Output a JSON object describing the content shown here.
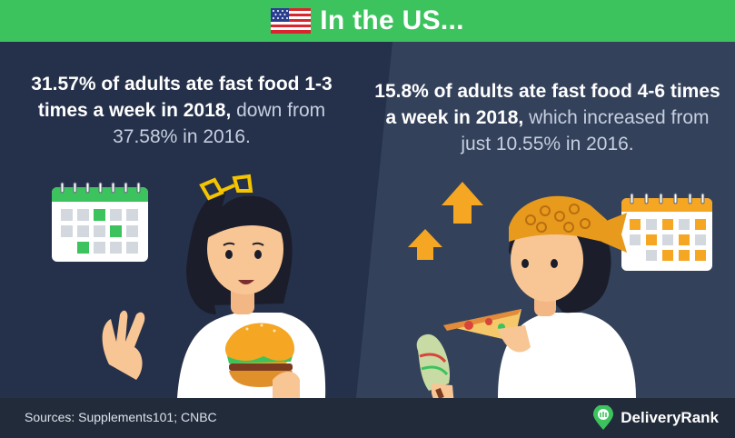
{
  "header": {
    "title": "In the US...",
    "flag_icon": "us-flag-icon"
  },
  "left_panel": {
    "stat_bold": "31.57% of adults ate fast food 1-3 times a week in 2018,",
    "stat_rest": " down from 37.58% in 2016.",
    "calendar_icon": "calendar-icon",
    "illustration": "woman-eating-burger-illustration"
  },
  "right_panel": {
    "stat_bold": "15.8% of adults ate fast food 4-6 times a week in 2018,",
    "stat_rest": " which increased from just 10.55% in 2016.",
    "calendar_icon": "calendar-icon",
    "arrow_icon": "arrow-up-icon",
    "illustration": "woman-eating-pizza-illustration"
  },
  "footer": {
    "source": "Sources: Supplements101; CNBC",
    "brand": "DeliveryRank",
    "brand_icon": "delivery-rank-logo-icon"
  },
  "colors": {
    "header_green": "#3cc35e",
    "left_panel_bg": "#25304a",
    "right_panel_bg": "#33415a",
    "footer_bg": "#222b3a",
    "left_calendar_accent": "#3cc35e",
    "right_calendar_accent": "#f5a623",
    "arrow_orange": "#f5a623"
  }
}
